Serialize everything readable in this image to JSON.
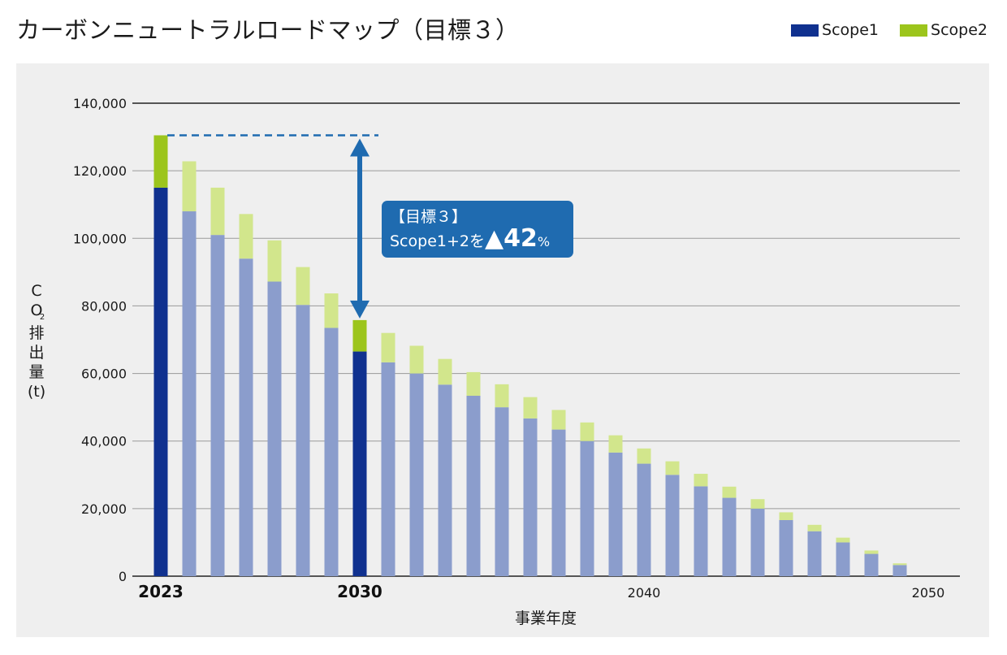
{
  "title": "カーボンニュートラルロードマップ（目標３）",
  "legend": {
    "scope1": "Scope1",
    "scope2": "Scope2"
  },
  "colors": {
    "scope1_highlight": "#10318f",
    "scope2_highlight": "#9cc51c",
    "scope1_other": "#8b9dcc",
    "scope2_other": "#d2e68c",
    "arrow": "#1f6bb0",
    "panel": "#efefef"
  },
  "callout": {
    "line1": "【目標３】",
    "line2_prefix": "Scope1+2を",
    "triangle": "▲",
    "number": "42",
    "unit": "%"
  },
  "chart_data": {
    "type": "bar",
    "stacked": true,
    "xlabel": "事業年度",
    "ylabel_parts": [
      "C",
      "O",
      "2",
      "排",
      "出",
      "量",
      "(t)"
    ],
    "ylim": [
      0,
      140000
    ],
    "yticks": [
      "0",
      "20,000",
      "40,000",
      "60,000",
      "80,000",
      "100,000",
      "120,000",
      "140,000"
    ],
    "ytick_values": [
      0,
      20000,
      40000,
      60000,
      80000,
      100000,
      120000,
      140000
    ],
    "categories": [
      2023,
      2024,
      2025,
      2026,
      2027,
      2028,
      2029,
      2030,
      2031,
      2032,
      2033,
      2034,
      2035,
      2036,
      2037,
      2038,
      2039,
      2040,
      2041,
      2042,
      2043,
      2044,
      2045,
      2046,
      2047,
      2048,
      2049,
      2050
    ],
    "xtick_labels": [
      {
        "year": 2023,
        "label": "2023",
        "bold": true
      },
      {
        "year": 2030,
        "label": "2030",
        "bold": true
      },
      {
        "year": 2040,
        "label": "2040",
        "bold": false
      },
      {
        "year": 2050,
        "label": "2050",
        "bold": false
      }
    ],
    "highlight_years": [
      2023,
      2030
    ],
    "series": [
      {
        "name": "Scope1",
        "values": [
          115000,
          108000,
          101000,
          94000,
          87200,
          80300,
          73500,
          66500,
          63300,
          60000,
          56700,
          53400,
          50000,
          46700,
          43400,
          40000,
          36600,
          33300,
          30000,
          26600,
          23200,
          20000,
          16600,
          13300,
          10000,
          6600,
          3300,
          0
        ]
      },
      {
        "name": "Scope2",
        "values": [
          15500,
          14800,
          14000,
          13200,
          12200,
          11200,
          10200,
          9300,
          8700,
          8200,
          7600,
          7000,
          6800,
          6300,
          5800,
          5500,
          5100,
          4500,
          4000,
          3700,
          3300,
          2800,
          2300,
          1900,
          1400,
          1000,
          500,
          0
        ]
      }
    ]
  }
}
